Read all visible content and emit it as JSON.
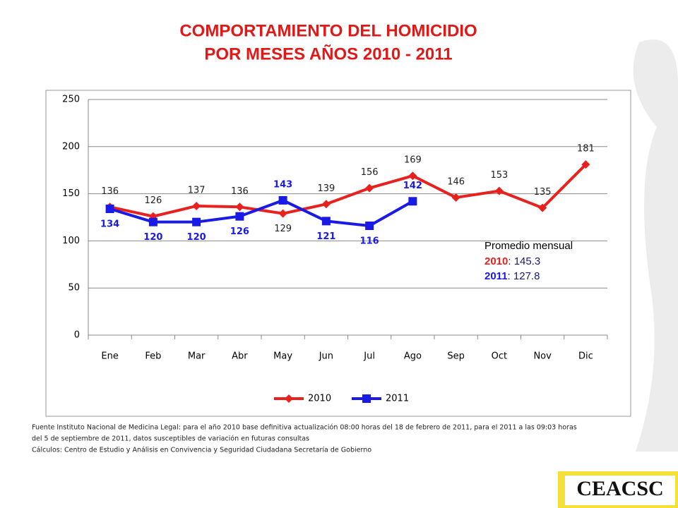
{
  "chart_data": {
    "type": "line",
    "title": [
      "COMPORTAMIENTO DEL HOMICIDIO",
      "POR MESES AÑOS 2010 - 2011"
    ],
    "categories": [
      "Ene",
      "Feb",
      "Mar",
      "Abr",
      "May",
      "Jun",
      "Jul",
      "Ago",
      "Sep",
      "Oct",
      "Nov",
      "Dic"
    ],
    "series": [
      {
        "name": "2010",
        "color": "#e8201e",
        "label_color": "#222222",
        "values": [
          136,
          126,
          137,
          136,
          129,
          139,
          156,
          169,
          146,
          153,
          135,
          181
        ]
      },
      {
        "name": "2011",
        "color": "#1a1ae6",
        "label_color": "#1a1ae6",
        "values": [
          134,
          120,
          120,
          126,
          143,
          121,
          116,
          142,
          null,
          null,
          null,
          null
        ]
      }
    ],
    "ylim": [
      0,
      250
    ],
    "yticks": [
      0,
      50,
      100,
      150,
      200,
      250
    ],
    "grid": true,
    "legend": "bottom",
    "average": {
      "title": "Promedio mensual",
      "items": [
        {
          "name": "2010",
          "color": "#e8201e",
          "text": ": 145.3"
        },
        {
          "name": "2011",
          "color": "#1a1ae6",
          "text": ":  127.8"
        }
      ]
    }
  },
  "footnotes": [
    "Fuente Instituto Nacional de Medicina Legal: para el  año 2010 base definitiva actualización 08:00 horas del 18 de febrero de 2011, para el 2011  a las 09:03  horas",
    "del  5 de  septiembre de 2011, datos susceptibles de variación en futuras consultas",
    "Cálculos: Centro de Estudio  y Análisis en Convivencia y Seguridad Ciudadana Secretaría de Gobierno"
  ],
  "logo": "CEACSC"
}
